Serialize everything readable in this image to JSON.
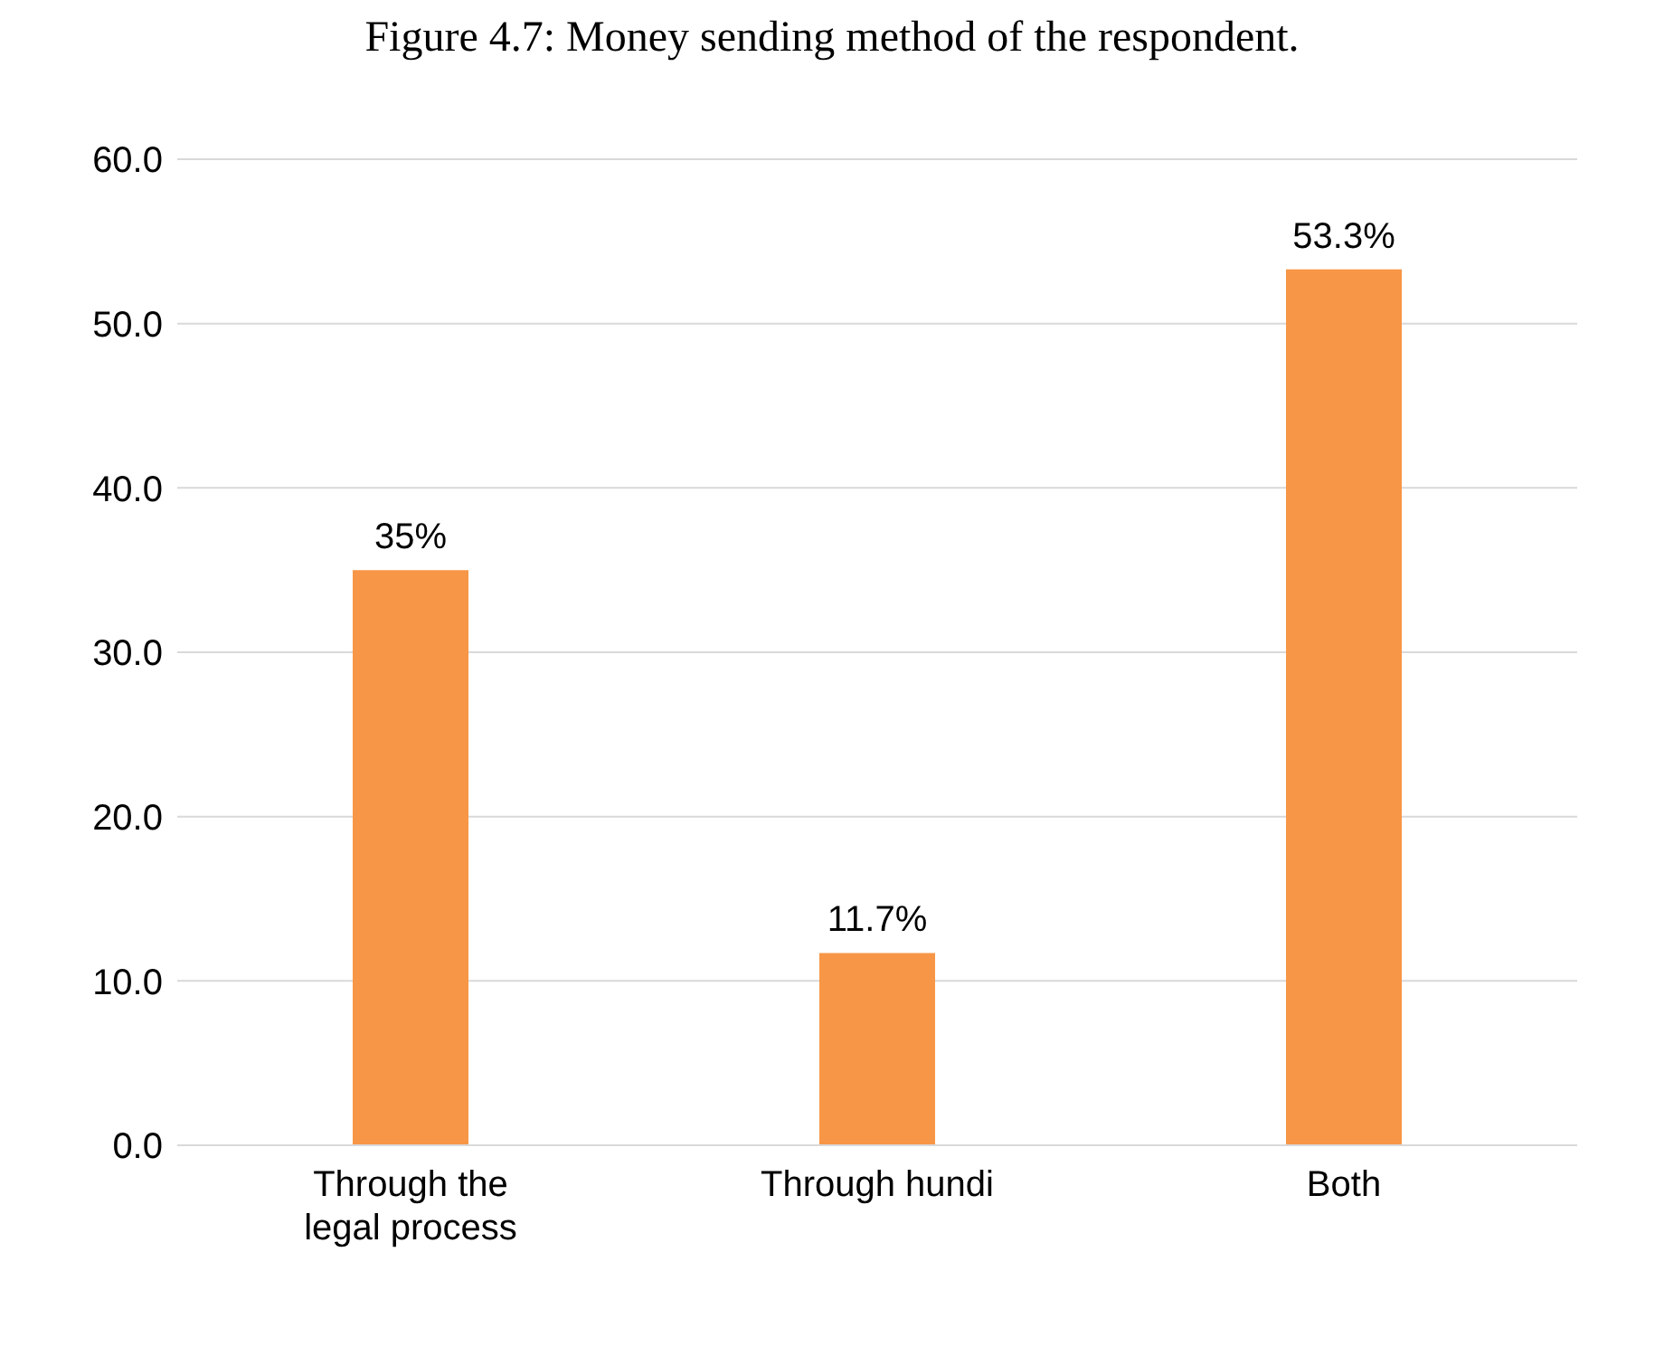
{
  "chart_data": {
    "type": "bar",
    "title": "Figure 4.7: Money sending method of the respondent.",
    "categories": [
      "Through the legal process",
      "Through hundi",
      "Both"
    ],
    "values": [
      35,
      11.7,
      53.3
    ],
    "color": "#f79646",
    "value_labels": [
      "35%",
      "11.7%",
      "53.3%"
    ],
    "ylim": [
      0,
      60
    ],
    "yticks": [
      {
        "value": 0,
        "label": "0.0"
      },
      {
        "value": 10,
        "label": "10.0"
      },
      {
        "value": 20,
        "label": "20.0"
      },
      {
        "value": 30,
        "label": "30.0"
      },
      {
        "value": 40,
        "label": "40.0"
      },
      {
        "value": 50,
        "label": "50.0"
      },
      {
        "value": 60,
        "label": "60.0"
      }
    ],
    "grid": "y"
  }
}
